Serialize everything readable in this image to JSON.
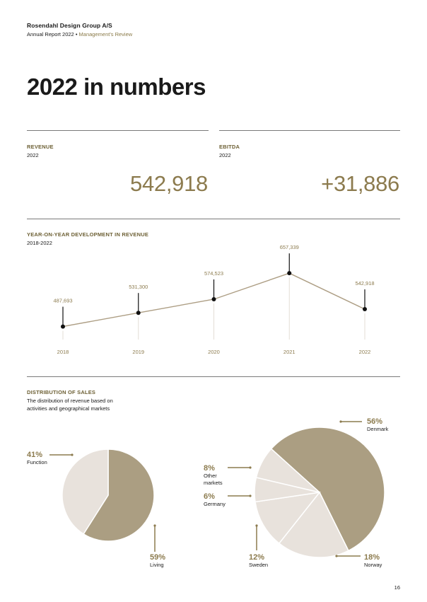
{
  "header": {
    "company": "Rosendahl Design Group A/S",
    "report": "Annual Report 2022",
    "separator": "•",
    "section": "Management's Review"
  },
  "title": "2022 in numbers",
  "kpis": {
    "revenue": {
      "label": "REVENUE",
      "year": "2022",
      "value": "542,918"
    },
    "ebitda": {
      "label": "EBITDA",
      "year": "2022",
      "value": "+31,886"
    }
  },
  "development": {
    "label": "YEAR-ON-YEAR DEVELOPMENT IN REVENUE",
    "period": "2018-2022"
  },
  "distribution": {
    "label": "DISTRIBUTION OF SALES",
    "description_line1": "The distribution of revenue based on",
    "description_line2": "activities and geographical markets"
  },
  "colors": {
    "accent": "#8c7b4e",
    "label": "#6e6136",
    "pie_dark": "#ab9e82",
    "pie_light": "#e8e2dc",
    "line": "#ad9e84"
  },
  "chart_data": [
    {
      "type": "line",
      "x": [
        "2018",
        "2019",
        "2020",
        "2021",
        "2022"
      ],
      "series": [
        {
          "values": [
            487693,
            531300,
            574523,
            657339,
            542918
          ],
          "labels": [
            "487,693",
            "531,300",
            "574,523",
            "657,339",
            "542,918"
          ]
        }
      ]
    },
    {
      "type": "pie",
      "slices": [
        {
          "label": "Living",
          "value": 59,
          "display": "59%"
        },
        {
          "label": "Function",
          "value": 41,
          "display": "41%"
        }
      ]
    },
    {
      "type": "pie",
      "slices": [
        {
          "label": "Denmark",
          "value": 56,
          "display": "56%"
        },
        {
          "label": "Norway",
          "value": 18,
          "display": "18%"
        },
        {
          "label": "Sweden",
          "value": 12,
          "display": "12%"
        },
        {
          "label": "Germany",
          "value": 6,
          "display": "6%"
        },
        {
          "label": "Other markets",
          "label_line1": "Other",
          "label_line2": "markets",
          "value": 8,
          "display": "8%"
        }
      ]
    }
  ],
  "page_number": "16"
}
